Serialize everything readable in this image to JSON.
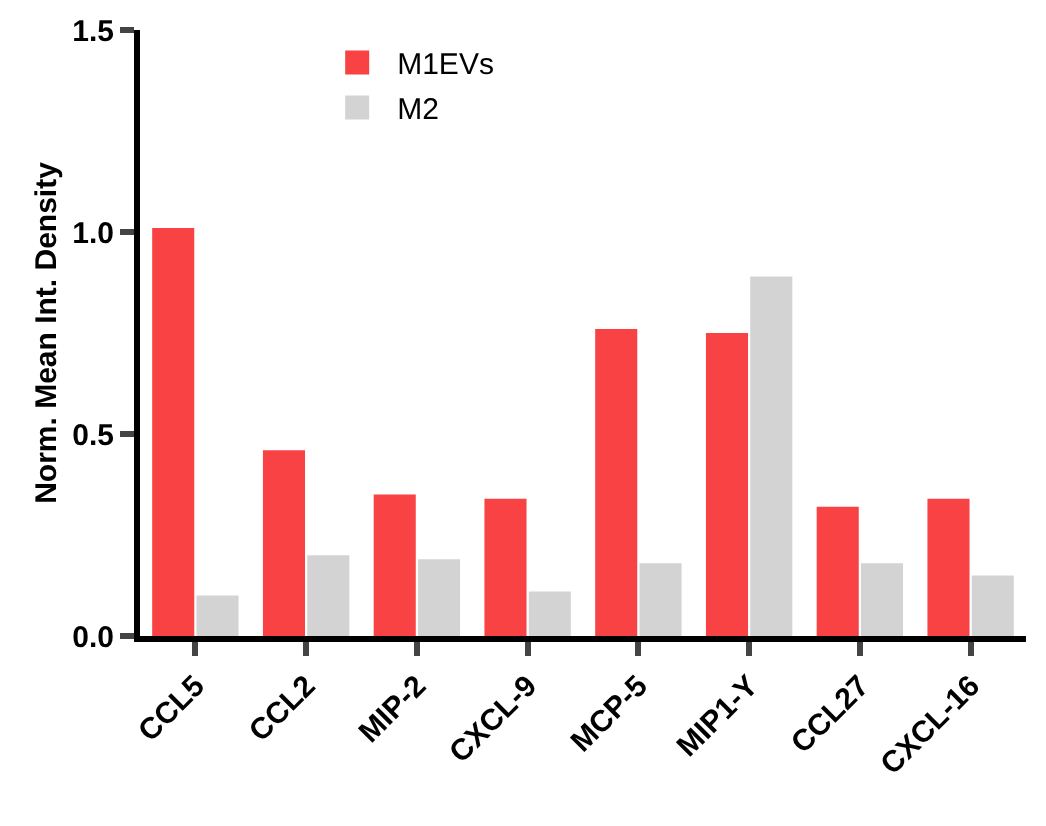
{
  "chart_data": {
    "type": "bar",
    "ylabel": "Norm. Mean Int. Density",
    "categories": [
      "CCL5",
      "CCL2",
      "MIP-2",
      "CXCL-9",
      "MCP-5",
      "MIP1-Y",
      "CCL27",
      "CXCL-16"
    ],
    "series": [
      {
        "name": "M1EVs",
        "color": "#f84244",
        "values": [
          1.01,
          0.46,
          0.35,
          0.34,
          0.76,
          0.75,
          0.32,
          0.34
        ]
      },
      {
        "name": "M2",
        "color": "#d3d3d3",
        "values": [
          0.1,
          0.2,
          0.19,
          0.11,
          0.18,
          0.89,
          0.18,
          0.15
        ]
      }
    ],
    "ylim": [
      0,
      1.5
    ],
    "yticks": [
      {
        "value": 0,
        "label": "0.0"
      },
      {
        "value": 0.5,
        "label": "0.5"
      },
      {
        "value": 1,
        "label": "1.0"
      },
      {
        "value": 1.5,
        "label": "1.5"
      }
    ],
    "grid": false,
    "legend": "top"
  }
}
